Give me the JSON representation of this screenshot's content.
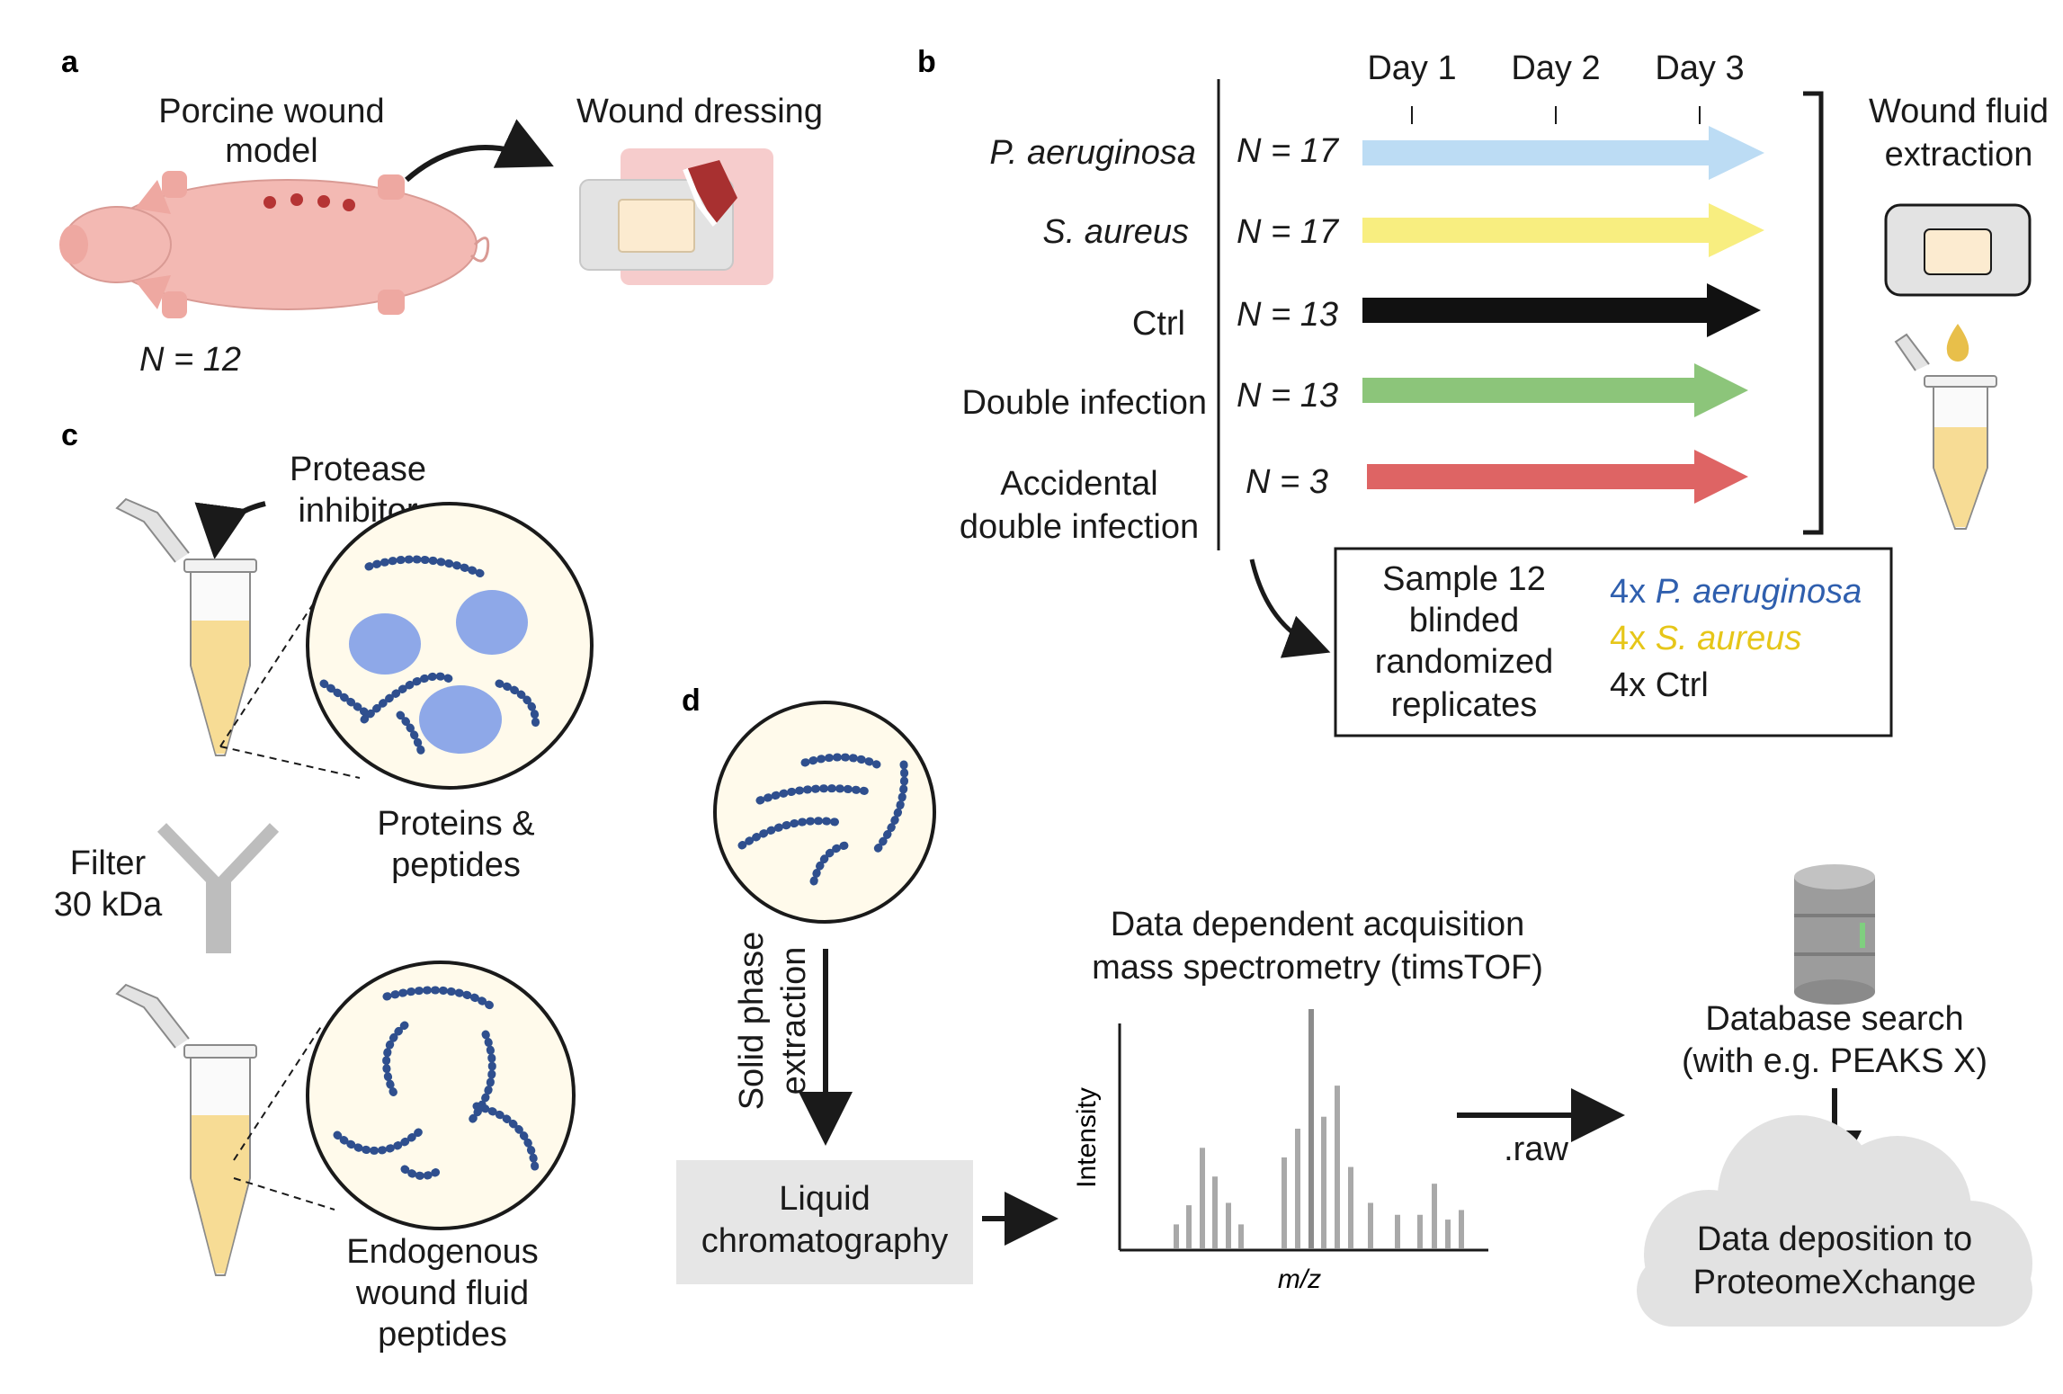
{
  "panels": {
    "a": "a",
    "b": "b",
    "c": "c",
    "d": "d"
  },
  "panel_a": {
    "model_label": [
      "Porcine wound",
      "model"
    ],
    "dressing_label": "Wound dressing",
    "n_label": "N = 12"
  },
  "panel_b": {
    "days": [
      "Day 1",
      "Day 2",
      "Day 3"
    ],
    "groups": [
      {
        "name": "P. aeruginosa",
        "italic": true,
        "n": "N = 17",
        "color": "#bcdcf4",
        "length": 1.0
      },
      {
        "name": "S. aureus",
        "italic": true,
        "n": "N = 17",
        "color": "#f8ee80",
        "length": 1.0
      },
      {
        "name": "Ctrl",
        "italic": false,
        "n": "N = 13",
        "color": "#111111",
        "length": 0.99
      },
      {
        "name": "Double infection",
        "italic": false,
        "n": "N = 13",
        "color": "#8cc57a",
        "length": 0.97
      },
      {
        "name_lines": [
          "Accidental",
          "double infection"
        ],
        "italic": false,
        "n": "N = 3",
        "color": "#de6464",
        "length": 0.97
      }
    ],
    "extraction_label": [
      "Wound fluid",
      "extraction"
    ],
    "sample_box": {
      "lines": [
        "Sample 12",
        "blinded",
        "randomized",
        "replicates"
      ],
      "replicates": [
        {
          "count": "4x",
          "name": "P. aeruginosa",
          "italic": true,
          "color": "#2f5fae"
        },
        {
          "count": "4x",
          "name": "S. aureus",
          "italic": true,
          "color": "#e6c619"
        },
        {
          "count": "4x",
          "name": "Ctrl",
          "italic": false,
          "color": "#111111"
        }
      ]
    }
  },
  "panel_c": {
    "inhibitor_label": [
      "Protease",
      "inhibitor"
    ],
    "proteins_label": [
      "Proteins &",
      "peptides"
    ],
    "filter_label": [
      "Filter",
      "30 kDa"
    ],
    "peptides_label": [
      "Endogenous",
      "wound fluid",
      "peptides"
    ]
  },
  "panel_d": {
    "spe_label": [
      "Solid phase",
      "extraction"
    ],
    "lc_label": [
      "Liquid",
      "chromatography"
    ],
    "ms_title": [
      "Data dependent acquisition",
      "mass spectrometry (timsTOF)"
    ],
    "raw_label": ".raw",
    "db_label": [
      "Database search",
      "(with e.g. PEAKS X)"
    ],
    "deposit_label": [
      "Data deposition to",
      "ProteomeXchange"
    ]
  },
  "chart_data": {
    "type": "bar",
    "xlabel": "m/z",
    "ylabel": "Intensity",
    "values": [
      0.1,
      0.18,
      0.42,
      0.3,
      0.19,
      0.1,
      0.38,
      0.5,
      1.0,
      0.55,
      0.68,
      0.34,
      0.19,
      0.14,
      0.14,
      0.27,
      0.12,
      0.16
    ],
    "highlight": [
      false,
      false,
      false,
      false,
      false,
      false,
      false,
      false,
      true,
      false,
      false,
      false,
      false,
      false,
      false,
      false,
      false,
      false
    ]
  },
  "colors": {
    "pig": "#f3b9b3",
    "wound": "#b53434",
    "fluid": "#f7dc95",
    "peptide": "#2f4f8e",
    "protein": "#8ea8e8",
    "bar": "#a9a9a9",
    "lc_box": "#e6e6e6",
    "cloud": "#e2e2e2"
  }
}
